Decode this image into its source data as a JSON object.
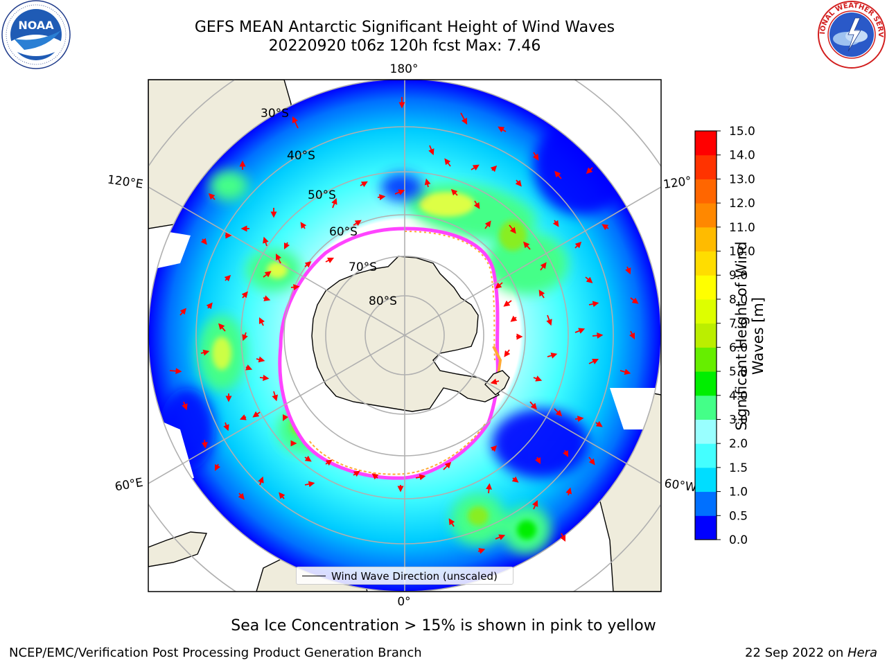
{
  "title": {
    "line1": "GEFS MEAN Antarctic Significant Height of Wind Waves",
    "line2": "20220920 t06z 120h fcst   Max: 7.46"
  },
  "logos": {
    "left": "noaa-logo",
    "left_text": "NOAA",
    "left_ring_text": "NATIONAL OCEANIC AND ATMOSPHERIC ADMINISTRATION · U.S. DEPARTMENT OF COMMERCE",
    "right": "nws-logo",
    "right_ring_text": "NATIONAL WEATHER SERVICE"
  },
  "map": {
    "projection": "south-polar-stereographic",
    "lat_labels": [
      "30°S",
      "40°S",
      "50°S",
      "60°S",
      "70°S",
      "80°S"
    ],
    "lon_labels": {
      "top": "180°",
      "bottom": "0°",
      "upper_left": "120°E",
      "lower_left": "60°E",
      "upper_right": "120°",
      "lower_right": "60°W"
    },
    "colors": {
      "land": "#efecdc",
      "ocean_missing": "#ffffff",
      "grid": "#b0b0b0",
      "ice_pink": "#ff44ff",
      "ice_orange": "#ffaa33",
      "arrow": "#ff0000"
    }
  },
  "legend": {
    "label": "Wind Wave Direction (unscaled)"
  },
  "colorbar": {
    "label": "Significant Height of Wind Waves [m]",
    "ticks": [
      "0.0",
      "0.5",
      "1.0",
      "1.5",
      "2.0",
      "3.0",
      "4.0",
      "5.0",
      "6.0",
      "7.0",
      "8.0",
      "9.0",
      "10.0",
      "11.0",
      "12.0",
      "13.0",
      "14.0",
      "15.0"
    ],
    "colors": [
      "#0000ff",
      "#0070ff",
      "#00ddff",
      "#44ffff",
      "#99ffff",
      "#44ff88",
      "#00ee00",
      "#66ee00",
      "#bbee00",
      "#ddff00",
      "#ffff00",
      "#ffdd00",
      "#ffbb00",
      "#ff8800",
      "#ff6600",
      "#ff3300",
      "#ff0000"
    ]
  },
  "footer": {
    "note": "Sea Ice Concentration > 15% is shown in pink to yellow",
    "left": "NCEP/EMC/Verification Post Processing Product Generation Branch",
    "right_date": "22 Sep 2022 on ",
    "right_machine": "Hera"
  }
}
